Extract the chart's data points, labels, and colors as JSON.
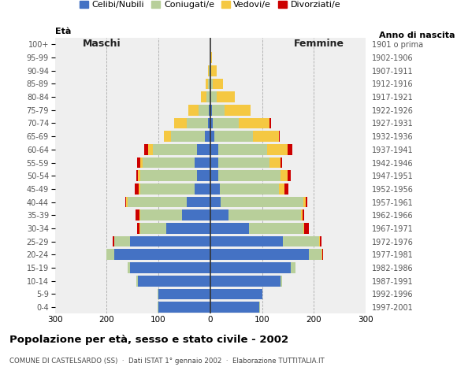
{
  "age_groups": [
    "0-4",
    "5-9",
    "10-14",
    "15-19",
    "20-24",
    "25-29",
    "30-34",
    "35-39",
    "40-44",
    "45-49",
    "50-54",
    "55-59",
    "60-64",
    "65-69",
    "70-74",
    "75-79",
    "80-84",
    "85-89",
    "90-94",
    "95-99",
    "100+"
  ],
  "birth_years": [
    "1997-2001",
    "1992-1996",
    "1987-1991",
    "1982-1986",
    "1977-1981",
    "1972-1976",
    "1967-1971",
    "1962-1966",
    "1957-1961",
    "1952-1956",
    "1947-1951",
    "1942-1946",
    "1937-1941",
    "1932-1936",
    "1927-1931",
    "1922-1926",
    "1917-1921",
    "1912-1916",
    "1907-1911",
    "1902-1906",
    "1901 o prima"
  ],
  "males_celibe": [
    100,
    100,
    140,
    155,
    185,
    155,
    85,
    55,
    45,
    30,
    25,
    30,
    25,
    10,
    5,
    3,
    0,
    0,
    0,
    0,
    0
  ],
  "males_coniugato": [
    1,
    1,
    2,
    5,
    15,
    30,
    50,
    80,
    115,
    105,
    110,
    100,
    85,
    65,
    40,
    20,
    8,
    4,
    2,
    0,
    0
  ],
  "males_vedovo": [
    0,
    0,
    0,
    0,
    0,
    1,
    1,
    1,
    2,
    3,
    5,
    5,
    10,
    15,
    25,
    20,
    10,
    5,
    2,
    0,
    0
  ],
  "males_divorziato": [
    0,
    0,
    0,
    0,
    1,
    2,
    5,
    8,
    2,
    8,
    2,
    6,
    7,
    0,
    0,
    0,
    0,
    0,
    0,
    0,
    0
  ],
  "females_celibe": [
    95,
    100,
    135,
    155,
    190,
    140,
    75,
    35,
    20,
    18,
    15,
    15,
    15,
    8,
    5,
    3,
    0,
    0,
    0,
    0,
    0
  ],
  "females_coniugato": [
    1,
    1,
    3,
    10,
    25,
    70,
    105,
    140,
    160,
    115,
    120,
    100,
    95,
    75,
    50,
    25,
    12,
    5,
    2,
    0,
    0
  ],
  "females_vedovo": [
    0,
    0,
    0,
    0,
    1,
    2,
    2,
    3,
    5,
    10,
    15,
    20,
    40,
    50,
    60,
    50,
    35,
    20,
    10,
    3,
    0
  ],
  "females_divorziato": [
    0,
    0,
    0,
    0,
    2,
    3,
    8,
    3,
    3,
    8,
    5,
    3,
    8,
    1,
    2,
    0,
    0,
    0,
    0,
    0,
    0
  ],
  "color_celibe": "#4472c4",
  "color_coniugato": "#b8cf9a",
  "color_vedovo": "#f5c842",
  "color_divorziato": "#cc0000",
  "xlim": 300,
  "title": "Popolazione per età, sesso e stato civile - 2002",
  "subtitle": "COMUNE DI CASTELSARDO (SS)  ·  Dati ISTAT 1° gennaio 2002  ·  Elaborazione TUTTITALIA.IT",
  "legend_labels": [
    "Celibi/Nubili",
    "Coniugati/e",
    "Vedovi/e",
    "Divorziati/e"
  ],
  "label_eta": "Età",
  "label_anno": "Anno di nascita",
  "label_maschi": "Maschi",
  "label_femmine": "Femmine",
  "bg_color": "#ffffff",
  "plot_bg": "#efefef"
}
